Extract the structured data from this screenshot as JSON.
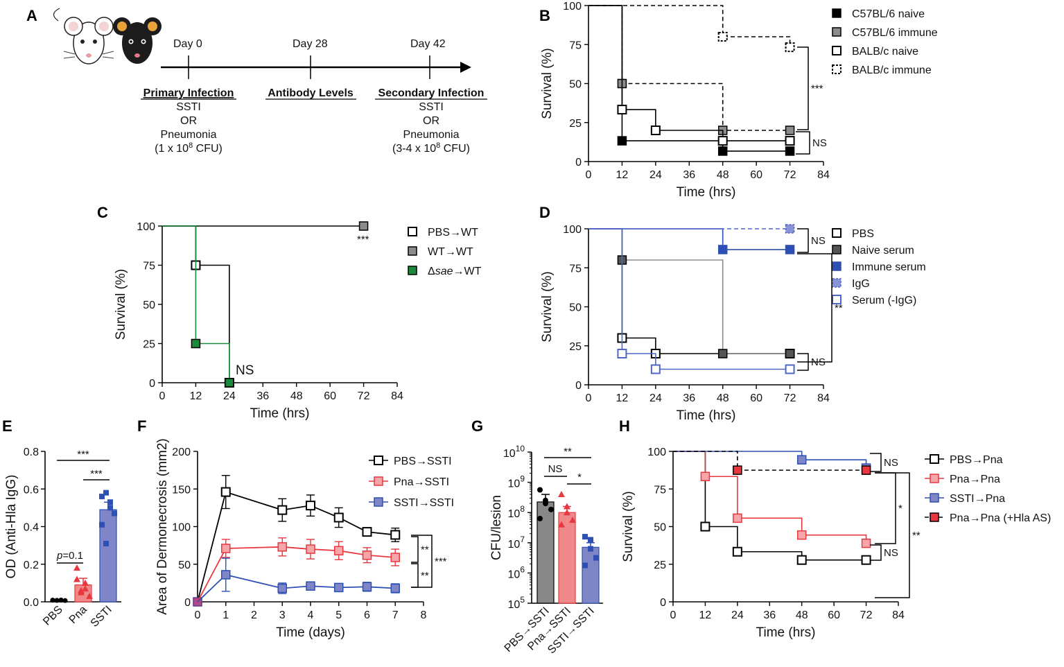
{
  "panels": {
    "a": "A",
    "b": "B",
    "c": "C",
    "d": "D",
    "e": "E",
    "f": "F",
    "g": "G",
    "h": "H"
  },
  "timeline": {
    "days": [
      "Day 0",
      "Day 28",
      "Day 42"
    ],
    "primary": {
      "heading": "Primary Infection",
      "l1": "SSTI",
      "l2": "OR",
      "l3": "Pneumonia",
      "dose_prefix": "(1 x 10",
      "dose_exp": "8",
      "dose_suffix": " CFU)"
    },
    "antibody": {
      "heading": "Antibody Levels"
    },
    "secondary": {
      "heading": "Secondary Infection",
      "l1": "SSTI",
      "l2": "OR",
      "l3": "Pneumonia",
      "dose_prefix": "(3-4 x 10",
      "dose_exp": "8",
      "dose_suffix": " CFU)"
    }
  },
  "colors": {
    "black": "#000000",
    "gray": "#8c8c8c",
    "green": "#1a8a3a",
    "blue": "#2e4fb3",
    "lightblue": "#4f66c9",
    "red": "#e8373f",
    "darkgray": "#555555",
    "pinkbar": "#f08a8a",
    "bluebar": "#7f86c8",
    "graybar": "#888888"
  },
  "chart_data": [
    {
      "id": "B",
      "type": "line",
      "ylabel": "Survival (%)",
      "xlabel": "Time (hrs)",
      "xlim": [
        0,
        84
      ],
      "ylim": [
        0,
        100
      ],
      "xticks": [
        "0",
        "12",
        "24",
        "36",
        "48",
        "60",
        "72",
        "84"
      ],
      "yticks": [
        "0",
        "25",
        "50",
        "75",
        "100"
      ],
      "series": [
        {
          "name": "C57BL/6 naive",
          "x": [
            0,
            12,
            48,
            72
          ],
          "y": [
            100,
            13.3,
            6.7,
            6.7
          ]
        },
        {
          "name": "C57BL/6 immune",
          "x": [
            0,
            12,
            48,
            72
          ],
          "y": [
            100,
            50,
            20,
            20
          ]
        },
        {
          "name": "BALB/c naive",
          "x": [
            0,
            12,
            24,
            48,
            72
          ],
          "y": [
            100,
            33.3,
            20,
            13.3,
            13.3
          ]
        },
        {
          "name": "BALB/c immune",
          "x": [
            0,
            48,
            72
          ],
          "y": [
            100,
            80,
            73.3
          ]
        }
      ],
      "significance": [
        "***",
        "NS"
      ]
    },
    {
      "id": "C",
      "type": "line",
      "ylabel": "Survival (%)",
      "xlabel": "Time (hrs)",
      "xlim": [
        0,
        84
      ],
      "ylim": [
        0,
        100
      ],
      "xticks": [
        "0",
        "12",
        "24",
        "36",
        "48",
        "60",
        "72",
        "84"
      ],
      "yticks": [
        "0",
        "25",
        "50",
        "75",
        "100"
      ],
      "series": [
        {
          "name": "PBS→WT",
          "x": [
            0,
            12,
            24
          ],
          "y": [
            100,
            75,
            0
          ]
        },
        {
          "name": "WT→WT",
          "x": [
            0,
            72
          ],
          "y": [
            100,
            100
          ]
        },
        {
          "name": "Δsae→WT",
          "x": [
            0,
            12,
            24
          ],
          "y": [
            100,
            25,
            0
          ]
        }
      ],
      "legend_labels": {
        "s3_prefix": "Δ",
        "s3_italic": "sae",
        "s3_suffix": "→WT"
      },
      "significance": [
        "***",
        "NS"
      ]
    },
    {
      "id": "D",
      "type": "line",
      "ylabel": "Survival (%)",
      "xlabel": "Time (hrs)",
      "xlim": [
        0,
        84
      ],
      "ylim": [
        0,
        100
      ],
      "xticks": [
        "0",
        "12",
        "24",
        "36",
        "48",
        "60",
        "72",
        "84"
      ],
      "yticks": [
        "0",
        "25",
        "50",
        "75",
        "100"
      ],
      "series": [
        {
          "name": "PBS",
          "x": [
            0,
            12,
            24,
            72
          ],
          "y": [
            100,
            30,
            20,
            20
          ]
        },
        {
          "name": "Naive serum",
          "x": [
            0,
            12,
            48,
            72
          ],
          "y": [
            100,
            80,
            20,
            20
          ]
        },
        {
          "name": "Immune serum",
          "x": [
            0,
            48,
            72
          ],
          "y": [
            100,
            86.7,
            86.7
          ]
        },
        {
          "name": "IgG",
          "x": [
            0,
            72
          ],
          "y": [
            100,
            100
          ]
        },
        {
          "name": "Serum (-IgG)",
          "x": [
            0,
            12,
            24,
            72
          ],
          "y": [
            100,
            20,
            10,
            10
          ]
        }
      ],
      "significance": [
        "NS",
        "**",
        "NS"
      ]
    },
    {
      "id": "E",
      "type": "bar",
      "ylabel": "OD (Anti-Hla IgG)",
      "categories": [
        "PBS",
        "Pna",
        "SSTI"
      ],
      "values": [
        0.005,
        0.09,
        0.49
      ],
      "errors": [
        0.002,
        0.035,
        0.04
      ],
      "points": [
        [
          0.005,
          0.004,
          0.006,
          0.003,
          0.005,
          0.004,
          0.005
        ],
        [
          0.18,
          0.05,
          0.07,
          0.03,
          0.12,
          0.06,
          0.1
        ],
        [
          0.56,
          0.58,
          0.53,
          0.47,
          0.41,
          0.31,
          0.5
        ]
      ],
      "ylim": [
        0,
        0.8
      ],
      "yticks": [
        "0.0",
        "0.2",
        "0.4",
        "0.6",
        "0.8"
      ],
      "significance": [
        "***",
        "***"
      ],
      "p_label": {
        "p": "p",
        "value": "=0.1"
      }
    },
    {
      "id": "F",
      "type": "line",
      "ylabel": "Area of Dermonecrosis (mm2)",
      "xlabel": "Time (days)",
      "xlim": [
        0,
        8
      ],
      "ylim": [
        0,
        200
      ],
      "xticks": [
        "0",
        "1",
        "2",
        "3",
        "4",
        "5",
        "6",
        "7",
        "8"
      ],
      "yticks": [
        "0",
        "50",
        "100",
        "150",
        "200"
      ],
      "series": [
        {
          "name": "PBS→SSTI",
          "x": [
            0,
            1,
            3,
            4,
            5,
            6,
            7
          ],
          "y": [
            0,
            146,
            122,
            128,
            112,
            93,
            89
          ],
          "err": [
            0,
            22,
            15,
            14,
            13,
            5,
            9
          ]
        },
        {
          "name": "Pna→SSTI",
          "x": [
            0,
            1,
            3,
            4,
            5,
            6,
            7
          ],
          "y": [
            0,
            71,
            73,
            70,
            68,
            62,
            59
          ],
          "err": [
            0,
            12,
            12,
            13,
            12,
            10,
            11
          ]
        },
        {
          "name": "SSTI→SSTI",
          "x": [
            0,
            1,
            3,
            4,
            5,
            6,
            7
          ],
          "y": [
            0,
            36,
            18,
            21,
            19,
            20,
            18
          ],
          "err": [
            0,
            22,
            7,
            4,
            4,
            6,
            6
          ]
        }
      ],
      "significance": [
        "**",
        "**",
        "***"
      ]
    },
    {
      "id": "G",
      "type": "bar",
      "ylabel": "CFU/lesion",
      "log": true,
      "ylim_exp": [
        5,
        10
      ],
      "yticks": [
        {
          "base": "10",
          "exp": "5"
        },
        {
          "base": "10",
          "exp": "6"
        },
        {
          "base": "10",
          "exp": "7"
        },
        {
          "base": "10",
          "exp": "8"
        },
        {
          "base": "10",
          "exp": "9"
        },
        {
          "base": "10",
          "exp": "10"
        }
      ],
      "categories": [
        "PBS→SSTI",
        "Pna→SSTI",
        "SSTI→SSTI"
      ],
      "values_log10": [
        8.35,
        8.0,
        6.85
      ],
      "err_hi": [
        8.6,
        8.2,
        7.0
      ],
      "points_log10": [
        [
          8.75,
          8.3,
          8.1,
          7.8,
          8.4
        ],
        [
          8.6,
          8.2,
          7.75,
          7.6,
          8.0
        ],
        [
          7.2,
          6.8,
          6.5,
          6.25,
          7.1
        ]
      ],
      "significance": [
        "**",
        "NS",
        "*"
      ]
    },
    {
      "id": "H",
      "type": "line",
      "ylabel": "Survival (%)",
      "xlabel": "Time (hrs)",
      "xlim": [
        0,
        84
      ],
      "ylim": [
        0,
        100
      ],
      "xticks": [
        "0",
        "12",
        "24",
        "36",
        "48",
        "60",
        "72",
        "84"
      ],
      "yticks": [
        "0",
        "25",
        "50",
        "75",
        "100"
      ],
      "series": [
        {
          "name": "PBS→Pna",
          "x": [
            0,
            12,
            24,
            48,
            72
          ],
          "y": [
            100,
            50,
            33.3,
            27.8,
            27.8
          ]
        },
        {
          "name": "Pna→Pna",
          "x": [
            0,
            12,
            24,
            48,
            72
          ],
          "y": [
            100,
            83.3,
            55.6,
            44.4,
            38.9
          ]
        },
        {
          "name": "SSTI→Pna",
          "x": [
            0,
            48,
            72
          ],
          "y": [
            100,
            94.4,
            88.9
          ]
        },
        {
          "name": "Pna→Pna (+Hla AS)",
          "x": [
            0,
            24,
            72
          ],
          "y": [
            100,
            87.5,
            87.5
          ]
        }
      ],
      "significance": [
        "NS",
        "*",
        "**",
        "NS"
      ]
    }
  ]
}
